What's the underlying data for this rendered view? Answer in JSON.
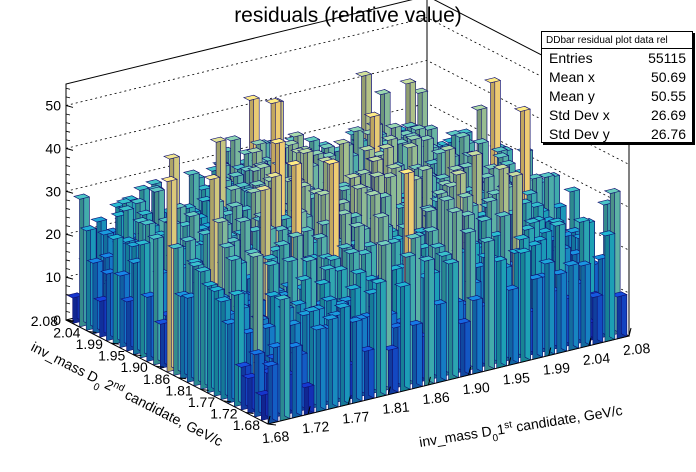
{
  "chart_data": {
    "type": "lego3d",
    "title": "residuals (relative value)",
    "x_axis": {
      "label_main": "inv_mass D",
      "label_sub": "0",
      "label_ord": "1",
      "label_sup": "st",
      "label_rest": " candidate, GeV/c",
      "ticks": [
        "1.68",
        "1.72",
        "1.77",
        "1.81",
        "1.86",
        "1.90",
        "1.95",
        "1.99",
        "2.04",
        "2.08"
      ],
      "range": [
        1.68,
        2.08
      ]
    },
    "y_axis": {
      "label_main": "inv_mass D",
      "label_sub": "0",
      "label_ord": "2",
      "label_sup": "nd",
      "label_rest": " candidate, GeV/c",
      "ticks": [
        "1.68",
        "1.72",
        "1.77",
        "1.81",
        "1.86",
        "1.90",
        "1.95",
        "1.99",
        "2.04",
        "2.08"
      ],
      "range": [
        1.68,
        2.08
      ]
    },
    "z_axis": {
      "ticks": [
        "0",
        "10",
        "20",
        "30",
        "40",
        "50"
      ],
      "range": [
        0,
        55
      ]
    },
    "grid": true,
    "bins": 30,
    "colors": {
      "low": "#1a1aa6",
      "mid": "#17a7b8",
      "high": "#f5d77a"
    }
  },
  "stats": {
    "header": "DDbar residual plot data rel",
    "rows": [
      {
        "label": "Entries",
        "value": "55115"
      },
      {
        "label": "Mean x",
        "value": "50.69"
      },
      {
        "label": "Mean y",
        "value": "50.55"
      },
      {
        "label": "Std Dev x",
        "value": "26.69"
      },
      {
        "label": "Std Dev y",
        "value": "26.76"
      }
    ]
  }
}
